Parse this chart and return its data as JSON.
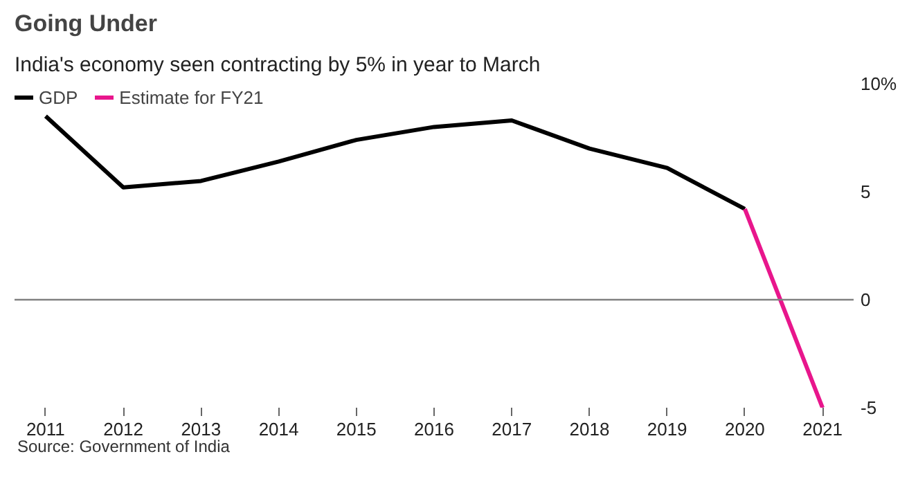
{
  "chart_data": {
    "type": "line",
    "title": "Going Under",
    "subtitle": "India's economy seen contracting by 5% in year to March",
    "series": [
      {
        "name": "GDP",
        "color": "#000000",
        "x": [
          2011,
          2012,
          2013,
          2014,
          2015,
          2016,
          2017,
          2018,
          2019,
          2020
        ],
        "values": [
          8.5,
          5.2,
          5.5,
          6.4,
          7.4,
          8.0,
          8.3,
          7.0,
          6.1,
          4.2
        ]
      },
      {
        "name": "Estimate for FY21",
        "color": "#e8168c",
        "x": [
          2020,
          2021
        ],
        "values": [
          4.2,
          -5.0
        ]
      }
    ],
    "xlim": [
      2010.6,
      2021.4
    ],
    "xticks": [
      2011,
      2012,
      2013,
      2014,
      2015,
      2016,
      2017,
      2018,
      2019,
      2020,
      2021
    ],
    "ylim": [
      -5,
      10
    ],
    "yticks": [
      {
        "value": 10,
        "label": "10%"
      },
      5,
      0,
      -5
    ],
    "ref_lines": [
      {
        "axis": "y",
        "value": 0,
        "color": "#808080"
      }
    ],
    "grid": false,
    "legend": "top left",
    "marker": "none",
    "line_style": "solid",
    "annotations": [
      "Source: Government of India"
    ]
  }
}
